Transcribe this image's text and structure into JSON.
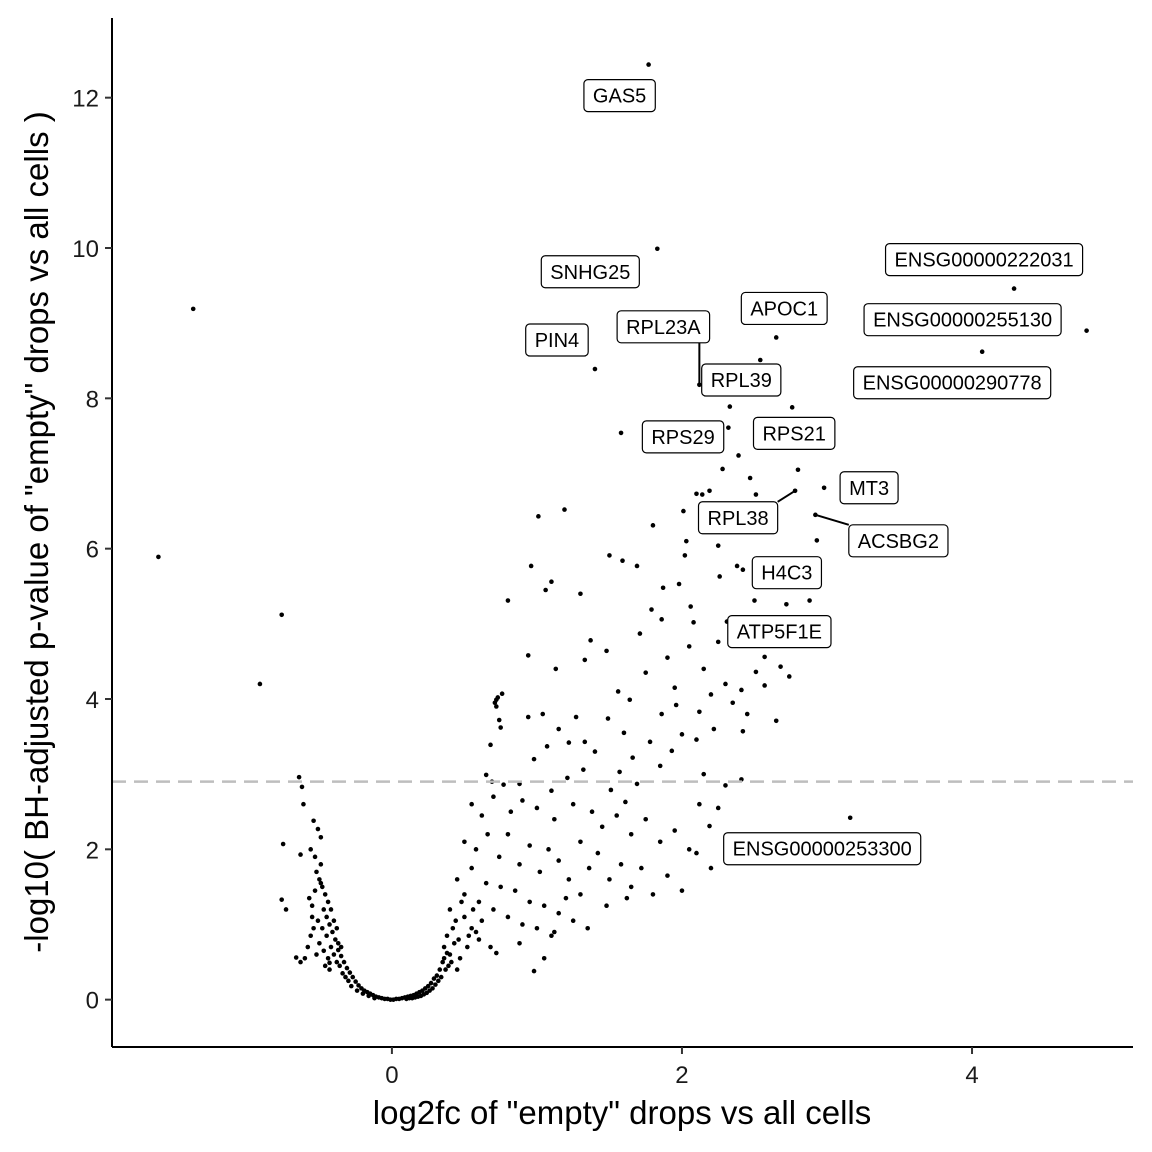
{
  "chart_data": {
    "type": "scatter",
    "title": "",
    "xlabel": "log2fc of \"empty\" drops vs all cells",
    "ylabel": "-log10( BH-adjusted p-value of \"empty\" drops vs all cells )",
    "xlim": [
      -1.93,
      5.11
    ],
    "ylim": [
      -0.63,
      13.06
    ],
    "xticks": [
      0,
      2,
      4
    ],
    "xtick_labels": [
      "0",
      "2",
      "4"
    ],
    "yticks": [
      0,
      2,
      4,
      6,
      8,
      10,
      12
    ],
    "ytick_labels": [
      "0",
      "2",
      "4",
      "6",
      "8",
      "10",
      "12"
    ],
    "threshold_line": {
      "y": 2.9,
      "style": "dashed",
      "color": "#bebebe"
    },
    "grid": false,
    "point_color": "#000000",
    "labeled_points": [
      {
        "label": "GAS5",
        "x": 1.77,
        "y": 12.44
      },
      {
        "label": "SNHG25",
        "x": 1.83,
        "y": 9.99
      },
      {
        "label": "PIN4",
        "x": 1.4,
        "y": 8.39
      },
      {
        "label": "RPL23A",
        "x": 2.12,
        "y": 8.18
      },
      {
        "label": "RPL39",
        "x": 2.54,
        "y": 8.51
      },
      {
        "label": "APOC1",
        "x": 2.65,
        "y": 8.81
      },
      {
        "label": "ENSG00000222031",
        "x": 4.29,
        "y": 9.46
      },
      {
        "label": "ENSG00000255130",
        "x": 4.79,
        "y": 8.9
      },
      {
        "label": "ENSG00000290778",
        "x": 4.07,
        "y": 8.62
      },
      {
        "label": "RPS29",
        "x": 1.58,
        "y": 7.54
      },
      {
        "label": "RPS21",
        "x": 2.76,
        "y": 7.88
      },
      {
        "label": "MT3",
        "x": 2.98,
        "y": 6.81
      },
      {
        "label": "RPL38",
        "x": 2.78,
        "y": 6.77
      },
      {
        "label": "ACSBG2",
        "x": 2.92,
        "y": 6.45
      },
      {
        "label": "H4C3",
        "x": 2.42,
        "y": 5.72
      },
      {
        "label": "ATP5F1E",
        "x": 2.52,
        "y": 4.79
      },
      {
        "label": "ENSG00000253300",
        "x": 3.16,
        "y": 2.42
      }
    ],
    "points": [
      [
        -1.37,
        9.19
      ],
      [
        -1.61,
        5.89
      ],
      [
        -0.76,
        5.12
      ],
      [
        -0.91,
        4.2
      ],
      [
        -0.64,
        2.96
      ],
      [
        -0.62,
        2.83
      ],
      [
        -0.61,
        2.6
      ],
      [
        -0.54,
        2.38
      ],
      [
        -0.51,
        2.27
      ],
      [
        -0.49,
        2.16
      ],
      [
        -0.56,
        2.0
      ],
      [
        -0.75,
        2.07
      ],
      [
        -0.63,
        1.93
      ],
      [
        -0.76,
        1.33
      ],
      [
        -0.73,
        1.2
      ],
      [
        -0.66,
        0.56
      ],
      [
        -0.63,
        0.5
      ],
      [
        -0.43,
        0.49
      ],
      [
        1.01,
        6.43
      ],
      [
        1.19,
        6.52
      ],
      [
        0.96,
        5.77
      ],
      [
        1.1,
        5.56
      ],
      [
        1.06,
        5.45
      ],
      [
        0.8,
        5.31
      ],
      [
        1.3,
        5.4
      ],
      [
        1.5,
        5.91
      ],
      [
        1.59,
        5.84
      ],
      [
        1.69,
        5.77
      ],
      [
        1.8,
        6.31
      ],
      [
        2.03,
        6.1
      ],
      [
        2.02,
        5.91
      ],
      [
        1.98,
        5.53
      ],
      [
        2.01,
        6.5
      ],
      [
        2.1,
        6.73
      ],
      [
        2.14,
        6.72
      ],
      [
        2.19,
        6.77
      ],
      [
        2.28,
        7.06
      ],
      [
        2.28,
        6.35
      ],
      [
        2.25,
        6.04
      ],
      [
        2.33,
        7.89
      ],
      [
        2.32,
        7.61
      ],
      [
        2.39,
        7.24
      ],
      [
        2.47,
        6.94
      ],
      [
        2.51,
        6.72
      ],
      [
        2.8,
        7.05
      ],
      [
        2.93,
        6.11
      ],
      [
        2.88,
        5.31
      ],
      [
        2.72,
        5.26
      ],
      [
        2.5,
        5.31
      ],
      [
        2.38,
        5.77
      ],
      [
        2.26,
        5.63
      ],
      [
        2.31,
        5.03
      ],
      [
        2.25,
        4.76
      ],
      [
        2.51,
        4.36
      ],
      [
        2.57,
        4.56
      ],
      [
        2.74,
        4.3
      ],
      [
        2.68,
        4.43
      ],
      [
        2.57,
        4.18
      ],
      [
        2.65,
        3.71
      ],
      [
        2.41,
        4.12
      ],
      [
        2.42,
        3.57
      ],
      [
        2.41,
        2.93
      ],
      [
        2.19,
        2.31
      ],
      [
        1.87,
        5.48
      ],
      [
        1.79,
        5.19
      ],
      [
        1.71,
        4.87
      ],
      [
        1.86,
        5.06
      ],
      [
        2.06,
        5.23
      ],
      [
        2.08,
        5.02
      ],
      [
        1.48,
        4.64
      ],
      [
        1.37,
        4.78
      ],
      [
        1.33,
        4.52
      ],
      [
        1.13,
        4.4
      ],
      [
        0.94,
        4.58
      ],
      [
        0.76,
        4.07
      ],
      [
        0.72,
        3.9
      ],
      [
        0.94,
        3.76
      ],
      [
        1.04,
        3.8
      ],
      [
        1.07,
        3.37
      ],
      [
        1.27,
        3.76
      ],
      [
        1.22,
        3.42
      ],
      [
        1.33,
        3.43
      ],
      [
        1.49,
        3.74
      ],
      [
        1.64,
        3.99
      ],
      [
        1.86,
        3.8
      ],
      [
        1.96,
        3.92
      ],
      [
        2.2,
        4.06
      ],
      [
        2.12,
        3.83
      ],
      [
        2.1,
        3.46
      ],
      [
        2.0,
        3.53
      ],
      [
        1.93,
        3.31
      ],
      [
        1.78,
        3.43
      ],
      [
        1.85,
        3.11
      ],
      [
        1.66,
        3.22
      ],
      [
        1.57,
        3.03
      ],
      [
        1.69,
        2.87
      ],
      [
        1.61,
        2.63
      ],
      [
        1.51,
        2.79
      ],
      [
        1.32,
        3.06
      ],
      [
        1.21,
        2.95
      ],
      [
        1.1,
        2.78
      ],
      [
        0.88,
        2.87
      ],
      [
        0.77,
        2.86
      ],
      [
        0.69,
        2.9
      ],
      [
        0.65,
        2.99
      ],
      [
        0.68,
        3.39
      ],
      [
        0.72,
        3.99
      ],
      [
        0.74,
        3.72
      ],
      [
        0.73,
        4.02
      ],
      [
        0.71,
        3.95
      ],
      [
        0.75,
        3.62
      ],
      [
        1.56,
        4.1
      ],
      [
        1.75,
        4.35
      ],
      [
        1.9,
        4.55
      ],
      [
        2.15,
        4.4
      ],
      [
        2.3,
        4.2
      ],
      [
        2.05,
        4.7
      ],
      [
        1.95,
        4.15
      ],
      [
        2.22,
        3.6
      ],
      [
        2.35,
        3.95
      ],
      [
        2.45,
        3.8
      ],
      [
        1.6,
        3.55
      ],
      [
        1.4,
        3.3
      ],
      [
        1.15,
        3.6
      ],
      [
        0.98,
        3.2
      ],
      [
        0.55,
        2.6
      ],
      [
        0.62,
        2.45
      ],
      [
        0.7,
        2.7
      ],
      [
        0.82,
        2.5
      ],
      [
        0.9,
        2.65
      ],
      [
        1.0,
        2.55
      ],
      [
        1.12,
        2.4
      ],
      [
        1.25,
        2.6
      ],
      [
        1.38,
        2.5
      ],
      [
        1.45,
        2.3
      ],
      [
        1.55,
        2.45
      ],
      [
        1.65,
        2.2
      ],
      [
        1.75,
        2.4
      ],
      [
        1.85,
        2.1
      ],
      [
        1.95,
        2.25
      ],
      [
        2.05,
        2.0
      ],
      [
        2.12,
        2.6
      ],
      [
        2.25,
        2.55
      ],
      [
        2.3,
        2.85
      ],
      [
        2.15,
        3.0
      ],
      [
        0.5,
        2.1
      ],
      [
        0.58,
        2.0
      ],
      [
        0.66,
        2.2
      ],
      [
        0.74,
        1.9
      ],
      [
        0.8,
        2.2
      ],
      [
        0.88,
        1.8
      ],
      [
        0.95,
        2.05
      ],
      [
        1.02,
        1.7
      ],
      [
        1.08,
        2.0
      ],
      [
        1.15,
        1.85
      ],
      [
        1.22,
        1.6
      ],
      [
        1.3,
        2.1
      ],
      [
        1.36,
        1.75
      ],
      [
        1.42,
        1.95
      ],
      [
        1.5,
        1.6
      ],
      [
        1.58,
        1.8
      ],
      [
        1.65,
        1.5
      ],
      [
        1.72,
        1.75
      ],
      [
        1.8,
        1.4
      ],
      [
        1.9,
        1.65
      ],
      [
        2.0,
        1.45
      ],
      [
        2.1,
        1.95
      ],
      [
        2.2,
        1.75
      ],
      [
        1.62,
        1.35
      ],
      [
        1.48,
        1.25
      ],
      [
        0.45,
        1.6
      ],
      [
        0.5,
        1.4
      ],
      [
        0.55,
        1.75
      ],
      [
        0.6,
        1.3
      ],
      [
        0.65,
        1.55
      ],
      [
        0.7,
        1.2
      ],
      [
        0.75,
        1.5
      ],
      [
        0.8,
        1.1
      ],
      [
        0.85,
        1.45
      ],
      [
        0.9,
        1.0
      ],
      [
        0.95,
        1.3
      ],
      [
        1.0,
        0.95
      ],
      [
        1.05,
        1.25
      ],
      [
        1.1,
        0.85
      ],
      [
        1.15,
        1.15
      ],
      [
        1.2,
        1.35
      ],
      [
        1.25,
        1.05
      ],
      [
        1.3,
        1.4
      ],
      [
        1.35,
        0.95
      ],
      [
        1.05,
        0.55
      ],
      [
        0.98,
        0.38
      ],
      [
        0.68,
        0.7
      ],
      [
        0.72,
        0.62
      ],
      [
        0.6,
        0.8
      ],
      [
        0.55,
        0.95
      ],
      [
        0.88,
        0.75
      ],
      [
        1.12,
        0.9
      ],
      [
        0.4,
        1.2
      ],
      [
        0.42,
        0.95
      ],
      [
        0.44,
        1.05
      ],
      [
        0.46,
        0.8
      ],
      [
        0.48,
        1.3
      ],
      [
        0.38,
        0.85
      ],
      [
        0.36,
        0.7
      ],
      [
        0.4,
        0.6
      ],
      [
        0.43,
        0.75
      ],
      [
        0.47,
        0.55
      ],
      [
        0.52,
        0.7
      ],
      [
        0.5,
        1.1
      ],
      [
        0.56,
        1.2
      ],
      [
        0.58,
        0.9
      ],
      [
        0.62,
        1.05
      ],
      [
        0.53,
        0.85
      ],
      [
        0.45,
        0.4
      ],
      [
        0.35,
        0.5
      ],
      [
        0.33,
        0.4
      ],
      [
        0.31,
        0.32
      ],
      [
        0.29,
        0.28
      ],
      [
        0.27,
        0.22
      ],
      [
        0.25,
        0.18
      ],
      [
        0.23,
        0.15
      ],
      [
        0.21,
        0.12
      ],
      [
        0.19,
        0.1
      ],
      [
        0.17,
        0.08
      ],
      [
        0.15,
        0.06
      ],
      [
        0.13,
        0.05
      ],
      [
        0.11,
        0.04
      ],
      [
        0.09,
        0.03
      ],
      [
        0.07,
        0.02
      ],
      [
        0.05,
        0.01
      ],
      [
        0.03,
        0.01
      ],
      [
        0.01,
        0.0
      ],
      [
        0.3,
        0.2
      ],
      [
        0.28,
        0.15
      ],
      [
        0.26,
        0.12
      ],
      [
        0.24,
        0.09
      ],
      [
        0.22,
        0.07
      ],
      [
        0.2,
        0.05
      ],
      [
        0.18,
        0.04
      ],
      [
        0.16,
        0.03
      ],
      [
        0.14,
        0.02
      ],
      [
        0.12,
        0.02
      ],
      [
        0.1,
        0.01
      ],
      [
        0.34,
        0.3
      ],
      [
        0.37,
        0.4
      ],
      [
        0.39,
        0.45
      ],
      [
        0.41,
        0.5
      ],
      [
        0.32,
        0.25
      ],
      [
        0.36,
        0.55
      ],
      [
        0.38,
        0.62
      ],
      [
        -0.01,
        0.0
      ],
      [
        -0.03,
        0.01
      ],
      [
        -0.05,
        0.01
      ],
      [
        -0.07,
        0.02
      ],
      [
        -0.09,
        0.03
      ],
      [
        -0.11,
        0.04
      ],
      [
        -0.13,
        0.06
      ],
      [
        -0.15,
        0.08
      ],
      [
        -0.17,
        0.1
      ],
      [
        -0.19,
        0.12
      ],
      [
        -0.21,
        0.15
      ],
      [
        -0.23,
        0.19
      ],
      [
        -0.25,
        0.24
      ],
      [
        -0.27,
        0.3
      ],
      [
        -0.29,
        0.36
      ],
      [
        -0.31,
        0.42
      ],
      [
        -0.33,
        0.5
      ],
      [
        -0.35,
        0.58
      ],
      [
        -0.37,
        0.66
      ],
      [
        -0.12,
        0.02
      ],
      [
        -0.16,
        0.05
      ],
      [
        -0.2,
        0.08
      ],
      [
        -0.24,
        0.12
      ],
      [
        -0.28,
        0.18
      ],
      [
        -0.3,
        0.25
      ],
      [
        -0.32,
        0.3
      ],
      [
        -0.34,
        0.35
      ],
      [
        -0.36,
        0.45
      ],
      [
        -0.38,
        0.5
      ],
      [
        -0.4,
        0.6
      ],
      [
        -0.42,
        0.7
      ],
      [
        -0.39,
        0.8
      ],
      [
        -0.41,
        0.9
      ],
      [
        -0.43,
        1.0
      ],
      [
        -0.45,
        1.1
      ],
      [
        -0.47,
        1.2
      ],
      [
        -0.44,
        1.3
      ],
      [
        -0.46,
        1.4
      ],
      [
        -0.48,
        1.5
      ],
      [
        -0.5,
        1.6
      ],
      [
        -0.52,
        1.7
      ],
      [
        -0.49,
        1.8
      ],
      [
        -0.53,
        1.45
      ],
      [
        -0.55,
        1.25
      ],
      [
        -0.51,
        1.05
      ],
      [
        -0.54,
        0.95
      ],
      [
        -0.56,
        0.85
      ],
      [
        -0.5,
        0.75
      ],
      [
        -0.47,
        0.65
      ],
      [
        -0.44,
        0.55
      ],
      [
        -0.52,
        0.6
      ],
      [
        -0.48,
        0.95
      ],
      [
        -0.42,
        1.2
      ],
      [
        -0.4,
        1.05
      ],
      [
        -0.38,
        0.95
      ],
      [
        -0.45,
        0.85
      ],
      [
        -0.55,
        1.1
      ],
      [
        -0.57,
        1.35
      ],
      [
        -0.53,
        1.9
      ],
      [
        -0.49,
        1.55
      ],
      [
        -0.37,
        0.75
      ],
      [
        -0.35,
        0.7
      ],
      [
        -0.46,
        0.45
      ],
      [
        -0.58,
        0.7
      ],
      [
        -0.6,
        0.55
      ],
      [
        -0.43,
        0.4
      ]
    ]
  }
}
